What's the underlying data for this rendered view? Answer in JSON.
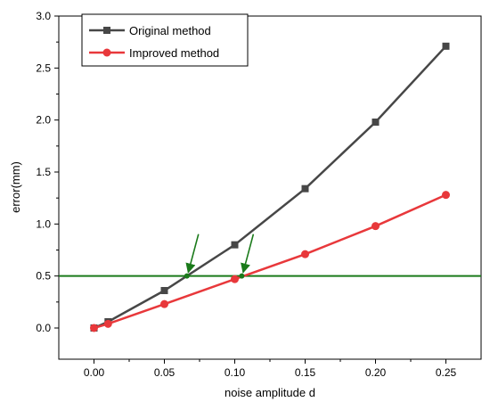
{
  "chart_data": {
    "type": "line",
    "xlabel": "noise amplitude d",
    "ylabel": "error(mm)",
    "xlim": [
      -0.025,
      0.275
    ],
    "ylim": [
      -0.3,
      3.0
    ],
    "x_ticks": [
      0.0,
      0.05,
      0.1,
      0.15,
      0.2,
      0.25
    ],
    "x_tick_labels": [
      "0.00",
      "0.05",
      "0.10",
      "0.15",
      "0.20",
      "0.25"
    ],
    "y_ticks": [
      0.0,
      0.5,
      1.0,
      1.5,
      2.0,
      2.5,
      3.0
    ],
    "y_tick_labels": [
      "0.0",
      "0.5",
      "1.0",
      "1.5",
      "2.0",
      "2.5",
      "3.0"
    ],
    "grid": false,
    "legend_position": "top-left",
    "series": [
      {
        "name": "Original method",
        "color": "#474747",
        "marker": "square",
        "x": [
          0.0,
          0.01,
          0.05,
          0.1,
          0.15,
          0.2,
          0.25
        ],
        "y": [
          0.0,
          0.06,
          0.36,
          0.8,
          1.34,
          1.98,
          2.71
        ]
      },
      {
        "name": "Improved method",
        "color": "#e8383b",
        "marker": "circle",
        "x": [
          0.0,
          0.01,
          0.05,
          0.1,
          0.15,
          0.2,
          0.25
        ],
        "y": [
          0.0,
          0.04,
          0.23,
          0.47,
          0.71,
          0.98,
          1.28
        ]
      }
    ],
    "reference_line": {
      "y": 0.5,
      "color": "#1a7a1a"
    },
    "annotations": [
      {
        "type": "arrow",
        "color": "#1a7a1a",
        "x": 0.066,
        "y": 0.5
      },
      {
        "type": "arrow",
        "color": "#1a7a1a",
        "x": 0.105,
        "y": 0.5
      }
    ]
  }
}
